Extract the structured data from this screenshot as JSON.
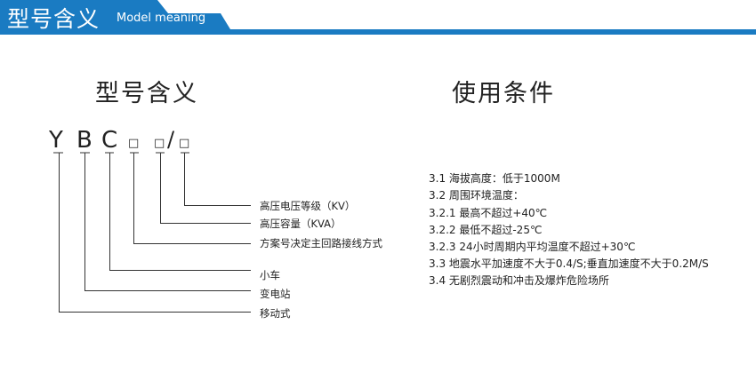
{
  "header": {
    "title": "型号含义",
    "subtitle": "Model meaning",
    "color": "#1a7bc2"
  },
  "left": {
    "title": "型号含义",
    "code": {
      "letters": [
        "Y",
        "B",
        "C"
      ],
      "boxes": [
        "□",
        "□",
        "□"
      ],
      "slash": "/"
    },
    "labels": [
      "高压电压等级（KV）",
      "高压容量（KVA）",
      "方案号决定主回路接线方式",
      "小车",
      "变电站",
      "移动式"
    ]
  },
  "right": {
    "title": "使用条件",
    "items": [
      "3.1 海拔高度：低于1000M",
      "3.2 周围环境温度：",
      "3.2.1 最高不超过+40℃",
      "3.2.2 最低不超过-25℃",
      "3.2.3 24小时周期内平均温度不超过+30℃",
      "3.3 地震水平加速度不大于0.4/S;垂直加速度不大于0.2M/S",
      "3.4 无剧烈震动和冲击及爆炸危险场所"
    ]
  }
}
